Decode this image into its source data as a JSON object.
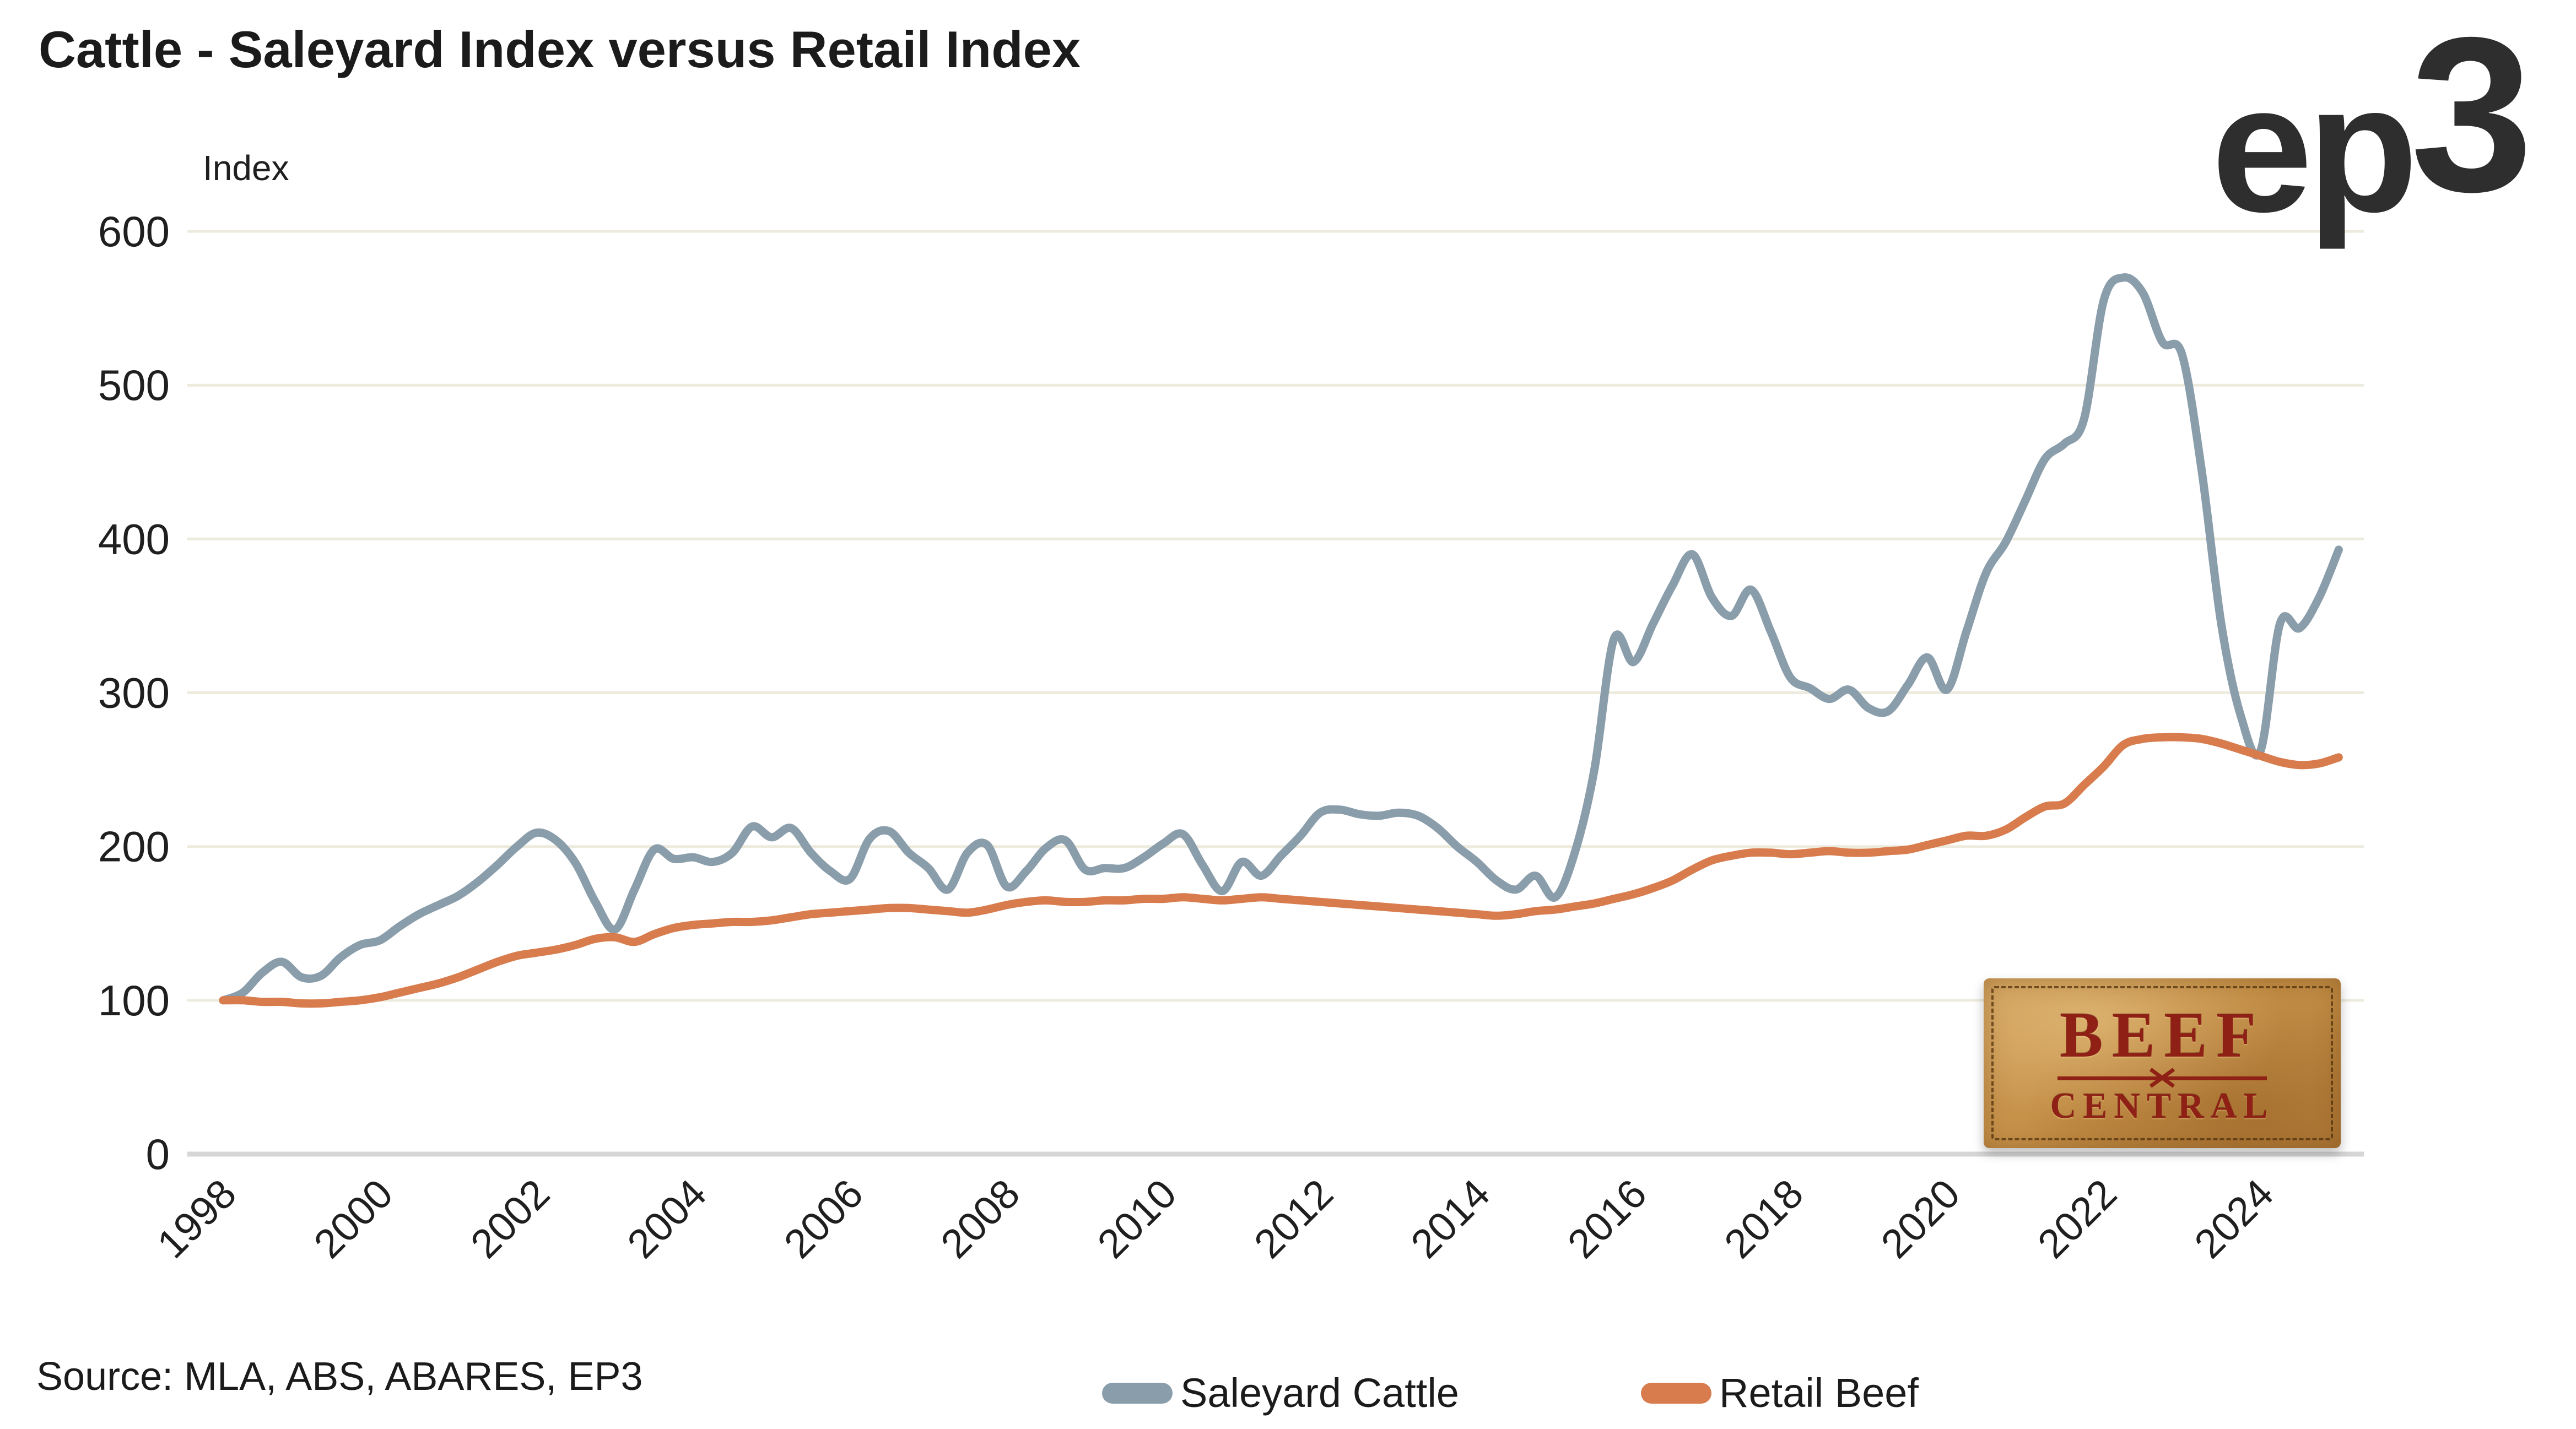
{
  "header": {
    "title": "Cattle - Saleyard Index versus Retail Index",
    "logo_main": "ep",
    "logo_digit": "3"
  },
  "source": {
    "label": "Source: MLA, ABS, ABARES, EP3"
  },
  "legend": [
    {
      "label": "Saleyard Cattle",
      "color": "#8a9dab"
    },
    {
      "label": "Retail Beef",
      "color": "#d87c4e"
    }
  ],
  "badge": {
    "line1": "BEEF",
    "line2": "CENTRAL"
  },
  "colors": {
    "saleyard_line": "#8a9dab",
    "retail_line": "#d87c4e",
    "gridline": "#edeade",
    "zero_axis": "#d6d6d6",
    "text": "#1f1f1f"
  },
  "chart_data": {
    "type": "line",
    "title": "Cattle - Saleyard Index versus Retail Index",
    "xlabel": "",
    "ylabel": "Index",
    "ylim": [
      0,
      600
    ],
    "y_ticks": [
      0,
      100,
      200,
      300,
      400,
      500,
      600
    ],
    "x_ticks": [
      1998,
      2000,
      2002,
      2004,
      2006,
      2008,
      2010,
      2012,
      2014,
      2016,
      2018,
      2020,
      2022,
      2024
    ],
    "x_start": 1998,
    "x_step": 0.25,
    "grid": "horizontal-only",
    "legend_position": "bottom",
    "series": [
      {
        "name": "Saleyard Cattle",
        "color": "#8a9dab",
        "values": [
          100,
          105,
          118,
          125,
          115,
          116,
          128,
          136,
          139,
          148,
          156,
          162,
          168,
          177,
          188,
          200,
          209,
          204,
          189,
          164,
          146,
          172,
          198,
          192,
          193,
          190,
          196,
          213,
          206,
          212,
          196,
          184,
          179,
          205,
          210,
          196,
          186,
          172,
          196,
          201,
          174,
          184,
          199,
          204,
          185,
          186,
          186,
          193,
          202,
          208,
          188,
          171,
          190,
          181,
          194,
          207,
          222,
          224,
          221,
          220,
          222,
          220,
          212,
          200,
          190,
          178,
          172,
          181,
          167,
          196,
          250,
          335,
          320,
          345,
          370,
          390,
          362,
          350,
          367,
          340,
          310,
          303,
          296,
          302,
          290,
          288,
          305,
          323,
          302,
          340,
          378,
          398,
          425,
          452,
          462,
          478,
          555,
          570,
          560,
          528,
          520,
          445,
          345,
          285,
          262,
          345,
          342,
          362,
          393
        ]
      },
      {
        "name": "Retail Beef",
        "color": "#d87c4e",
        "values": [
          100,
          100,
          99,
          99,
          98,
          98,
          99,
          100,
          102,
          105,
          108,
          111,
          115,
          120,
          125,
          129,
          131,
          133,
          136,
          140,
          141,
          138,
          143,
          147,
          149,
          150,
          151,
          151,
          152,
          154,
          156,
          157,
          158,
          159,
          160,
          160,
          159,
          158,
          157,
          159,
          162,
          164,
          165,
          164,
          164,
          165,
          165,
          166,
          166,
          167,
          166,
          165,
          166,
          167,
          166,
          165,
          164,
          163,
          162,
          161,
          160,
          159,
          158,
          157,
          156,
          155,
          156,
          158,
          159,
          161,
          163,
          166,
          169,
          173,
          178,
          185,
          191,
          194,
          196,
          196,
          195,
          196,
          197,
          196,
          196,
          197,
          198,
          201,
          204,
          207,
          207,
          211,
          219,
          226,
          228,
          240,
          252,
          266,
          270,
          271,
          271,
          270,
          267,
          263,
          259,
          255,
          253,
          254,
          258
        ]
      }
    ]
  }
}
